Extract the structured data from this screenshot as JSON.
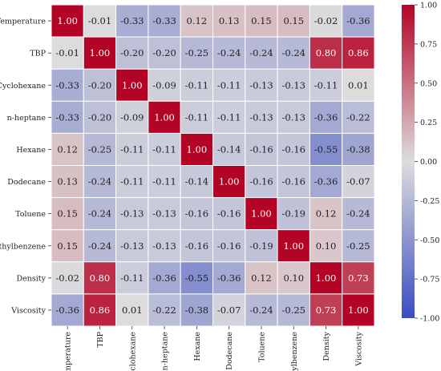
{
  "chart_data": {
    "type": "heatmap",
    "title": "",
    "xlabel": "",
    "ylabel": "",
    "labels": [
      "Temperature",
      "TBP",
      "Cyclohexane",
      "n-heptane",
      "Hexane",
      "Dodecane",
      "Toluene",
      "Ethylbenzene",
      "Density",
      "Viscosity"
    ],
    "values": [
      [
        1.0,
        -0.01,
        -0.33,
        -0.33,
        0.12,
        0.13,
        0.15,
        0.15,
        -0.02,
        -0.36
      ],
      [
        -0.01,
        1.0,
        -0.2,
        -0.2,
        -0.25,
        -0.24,
        -0.24,
        -0.24,
        0.8,
        0.86
      ],
      [
        -0.33,
        -0.2,
        1.0,
        -0.09,
        -0.11,
        -0.11,
        -0.13,
        -0.13,
        -0.11,
        0.01
      ],
      [
        -0.33,
        -0.2,
        -0.09,
        1.0,
        -0.11,
        -0.11,
        -0.13,
        -0.13,
        -0.36,
        -0.22
      ],
      [
        0.12,
        -0.25,
        -0.11,
        -0.11,
        1.0,
        -0.14,
        -0.16,
        -0.16,
        -0.55,
        -0.38
      ],
      [
        0.13,
        -0.24,
        -0.11,
        -0.11,
        -0.14,
        1.0,
        -0.16,
        -0.16,
        -0.36,
        -0.07
      ],
      [
        0.15,
        -0.24,
        -0.13,
        -0.13,
        -0.16,
        -0.16,
        1.0,
        -0.19,
        0.12,
        -0.24
      ],
      [
        0.15,
        -0.24,
        -0.13,
        -0.13,
        -0.16,
        -0.16,
        -0.19,
        1.0,
        0.1,
        -0.25
      ],
      [
        -0.02,
        0.8,
        -0.11,
        -0.36,
        -0.55,
        -0.36,
        0.12,
        0.1,
        1.0,
        0.73
      ],
      [
        -0.36,
        0.86,
        0.01,
        -0.22,
        -0.38,
        -0.07,
        -0.24,
        -0.25,
        0.73,
        1.0
      ]
    ],
    "value_format": "2 decimals",
    "colormap": "coolwarm",
    "colormap_stops": [
      "#3b4cc0",
      "#dddddd",
      "#b40426"
    ],
    "vmin": -1.0,
    "vmax": 1.0,
    "colorbar_ticks": [
      "1.00",
      "0.75",
      "0.50",
      "0.25",
      "0.00",
      "-0.25",
      "-0.50",
      "-0.75",
      "-1.00"
    ],
    "colorbar_tick_values": [
      1.0,
      0.75,
      0.5,
      0.25,
      0.0,
      -0.25,
      -0.5,
      -0.75,
      -1.0
    ],
    "cell_border_color": "#ffffff",
    "grid": false
  }
}
